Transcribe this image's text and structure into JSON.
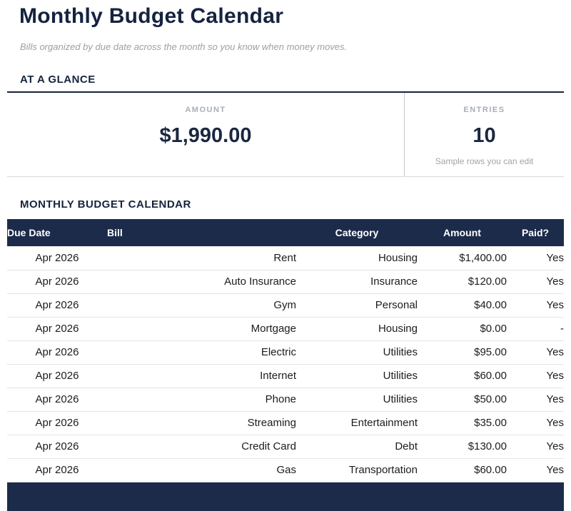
{
  "page": {
    "title": "Monthly Budget Calendar",
    "subtitle": "Bills organized by due date across the month so you know when money moves."
  },
  "glance": {
    "heading": "AT A GLANCE",
    "amount_card": {
      "label": "AMOUNT",
      "value": "$1,990.00"
    },
    "entries_card": {
      "label": "ENTRIES",
      "value": "10",
      "note": "Sample rows you can edit"
    }
  },
  "table": {
    "heading": "MONTHLY BUDGET CALENDAR",
    "columns": [
      "Due Date",
      "Bill",
      "Category",
      "Amount",
      "Paid?"
    ],
    "rows": [
      [
        "Apr 2026",
        "Rent",
        "Housing",
        "$1,400.00",
        "Yes"
      ],
      [
        "Apr 2026",
        "Auto Insurance",
        "Insurance",
        "$120.00",
        "Yes"
      ],
      [
        "Apr 2026",
        "Gym",
        "Personal",
        "$40.00",
        "Yes"
      ],
      [
        "Apr 2026",
        "Mortgage",
        "Housing",
        "$0.00",
        "-"
      ],
      [
        "Apr 2026",
        "Electric",
        "Utilities",
        "$95.00",
        "Yes"
      ],
      [
        "Apr 2026",
        "Internet",
        "Utilities",
        "$60.00",
        "Yes"
      ],
      [
        "Apr 2026",
        "Phone",
        "Utilities",
        "$50.00",
        "Yes"
      ],
      [
        "Apr 2026",
        "Streaming",
        "Entertainment",
        "$35.00",
        "Yes"
      ],
      [
        "Apr 2026",
        "Credit Card",
        "Debt",
        "$130.00",
        "Yes"
      ],
      [
        "Apr 2026",
        "Gas",
        "Transportation",
        "$60.00",
        "Yes"
      ]
    ]
  }
}
